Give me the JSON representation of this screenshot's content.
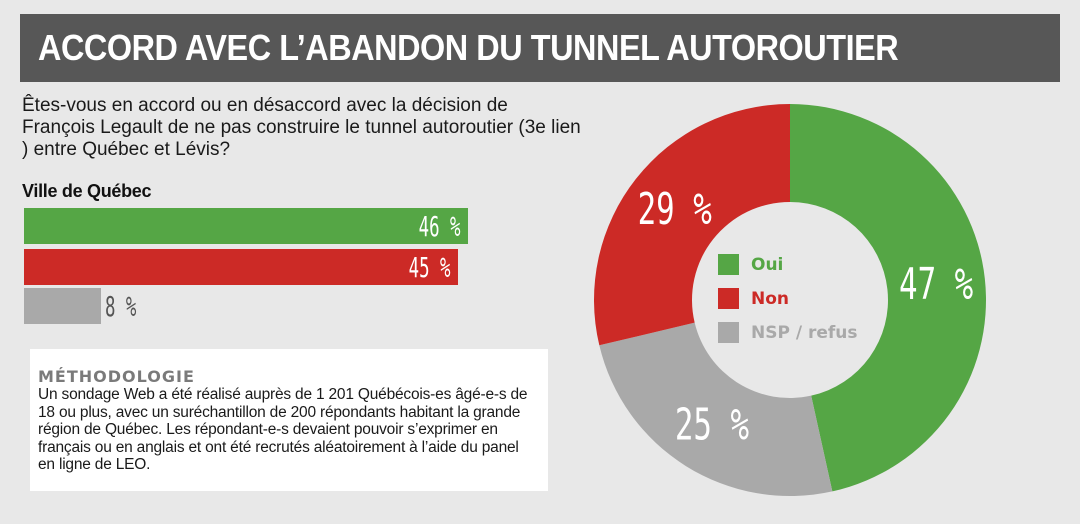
{
  "title": "ACCORD AVEC L’ABANDON DU TUNNEL AUTOROUTIER",
  "question": "Êtes-vous en accord ou en désaccord avec la décision de François Legault de ne pas construire le tunnel autoroutier (3e lien ) entre Québec et Lévis?",
  "colors": {
    "oui": "#55a645",
    "non": "#cc2a26",
    "nsp": "#a9a9a9",
    "title_bg": "#575757"
  },
  "methodology": {
    "title": "MÉTHODOLOGIE",
    "text": "Un sondage Web a été réalisé auprès de 1 201 Québécois-es âgé-e-s de 18 ou plus, avec un suréchantillon de 200 répondants habitant la grande région de Québec. Les répondant-e-s devaient pouvoir s’exprimer en français ou en anglais et ont été recrutés aléatoirement à l’aide du panel en ligne de LEO."
  },
  "chart_data": [
    {
      "type": "bar",
      "orientation": "horizontal",
      "title": "Ville de Québec",
      "categories": [
        "Oui",
        "Non",
        "NSP / refus"
      ],
      "values": [
        46,
        45,
        8
      ],
      "labels": [
        "46 %",
        "45 %",
        "8 %"
      ],
      "colors": [
        "#55a645",
        "#cc2a26",
        "#a9a9a9"
      ]
    },
    {
      "type": "pie",
      "donut": true,
      "categories": [
        "Oui",
        "Non",
        "NSP / refus"
      ],
      "values": [
        47,
        29,
        25
      ],
      "labels": [
        "47 %",
        "29 %",
        "25 %"
      ],
      "colors": [
        "#55a645",
        "#cc2a26",
        "#a9a9a9"
      ],
      "legend": "center"
    }
  ]
}
